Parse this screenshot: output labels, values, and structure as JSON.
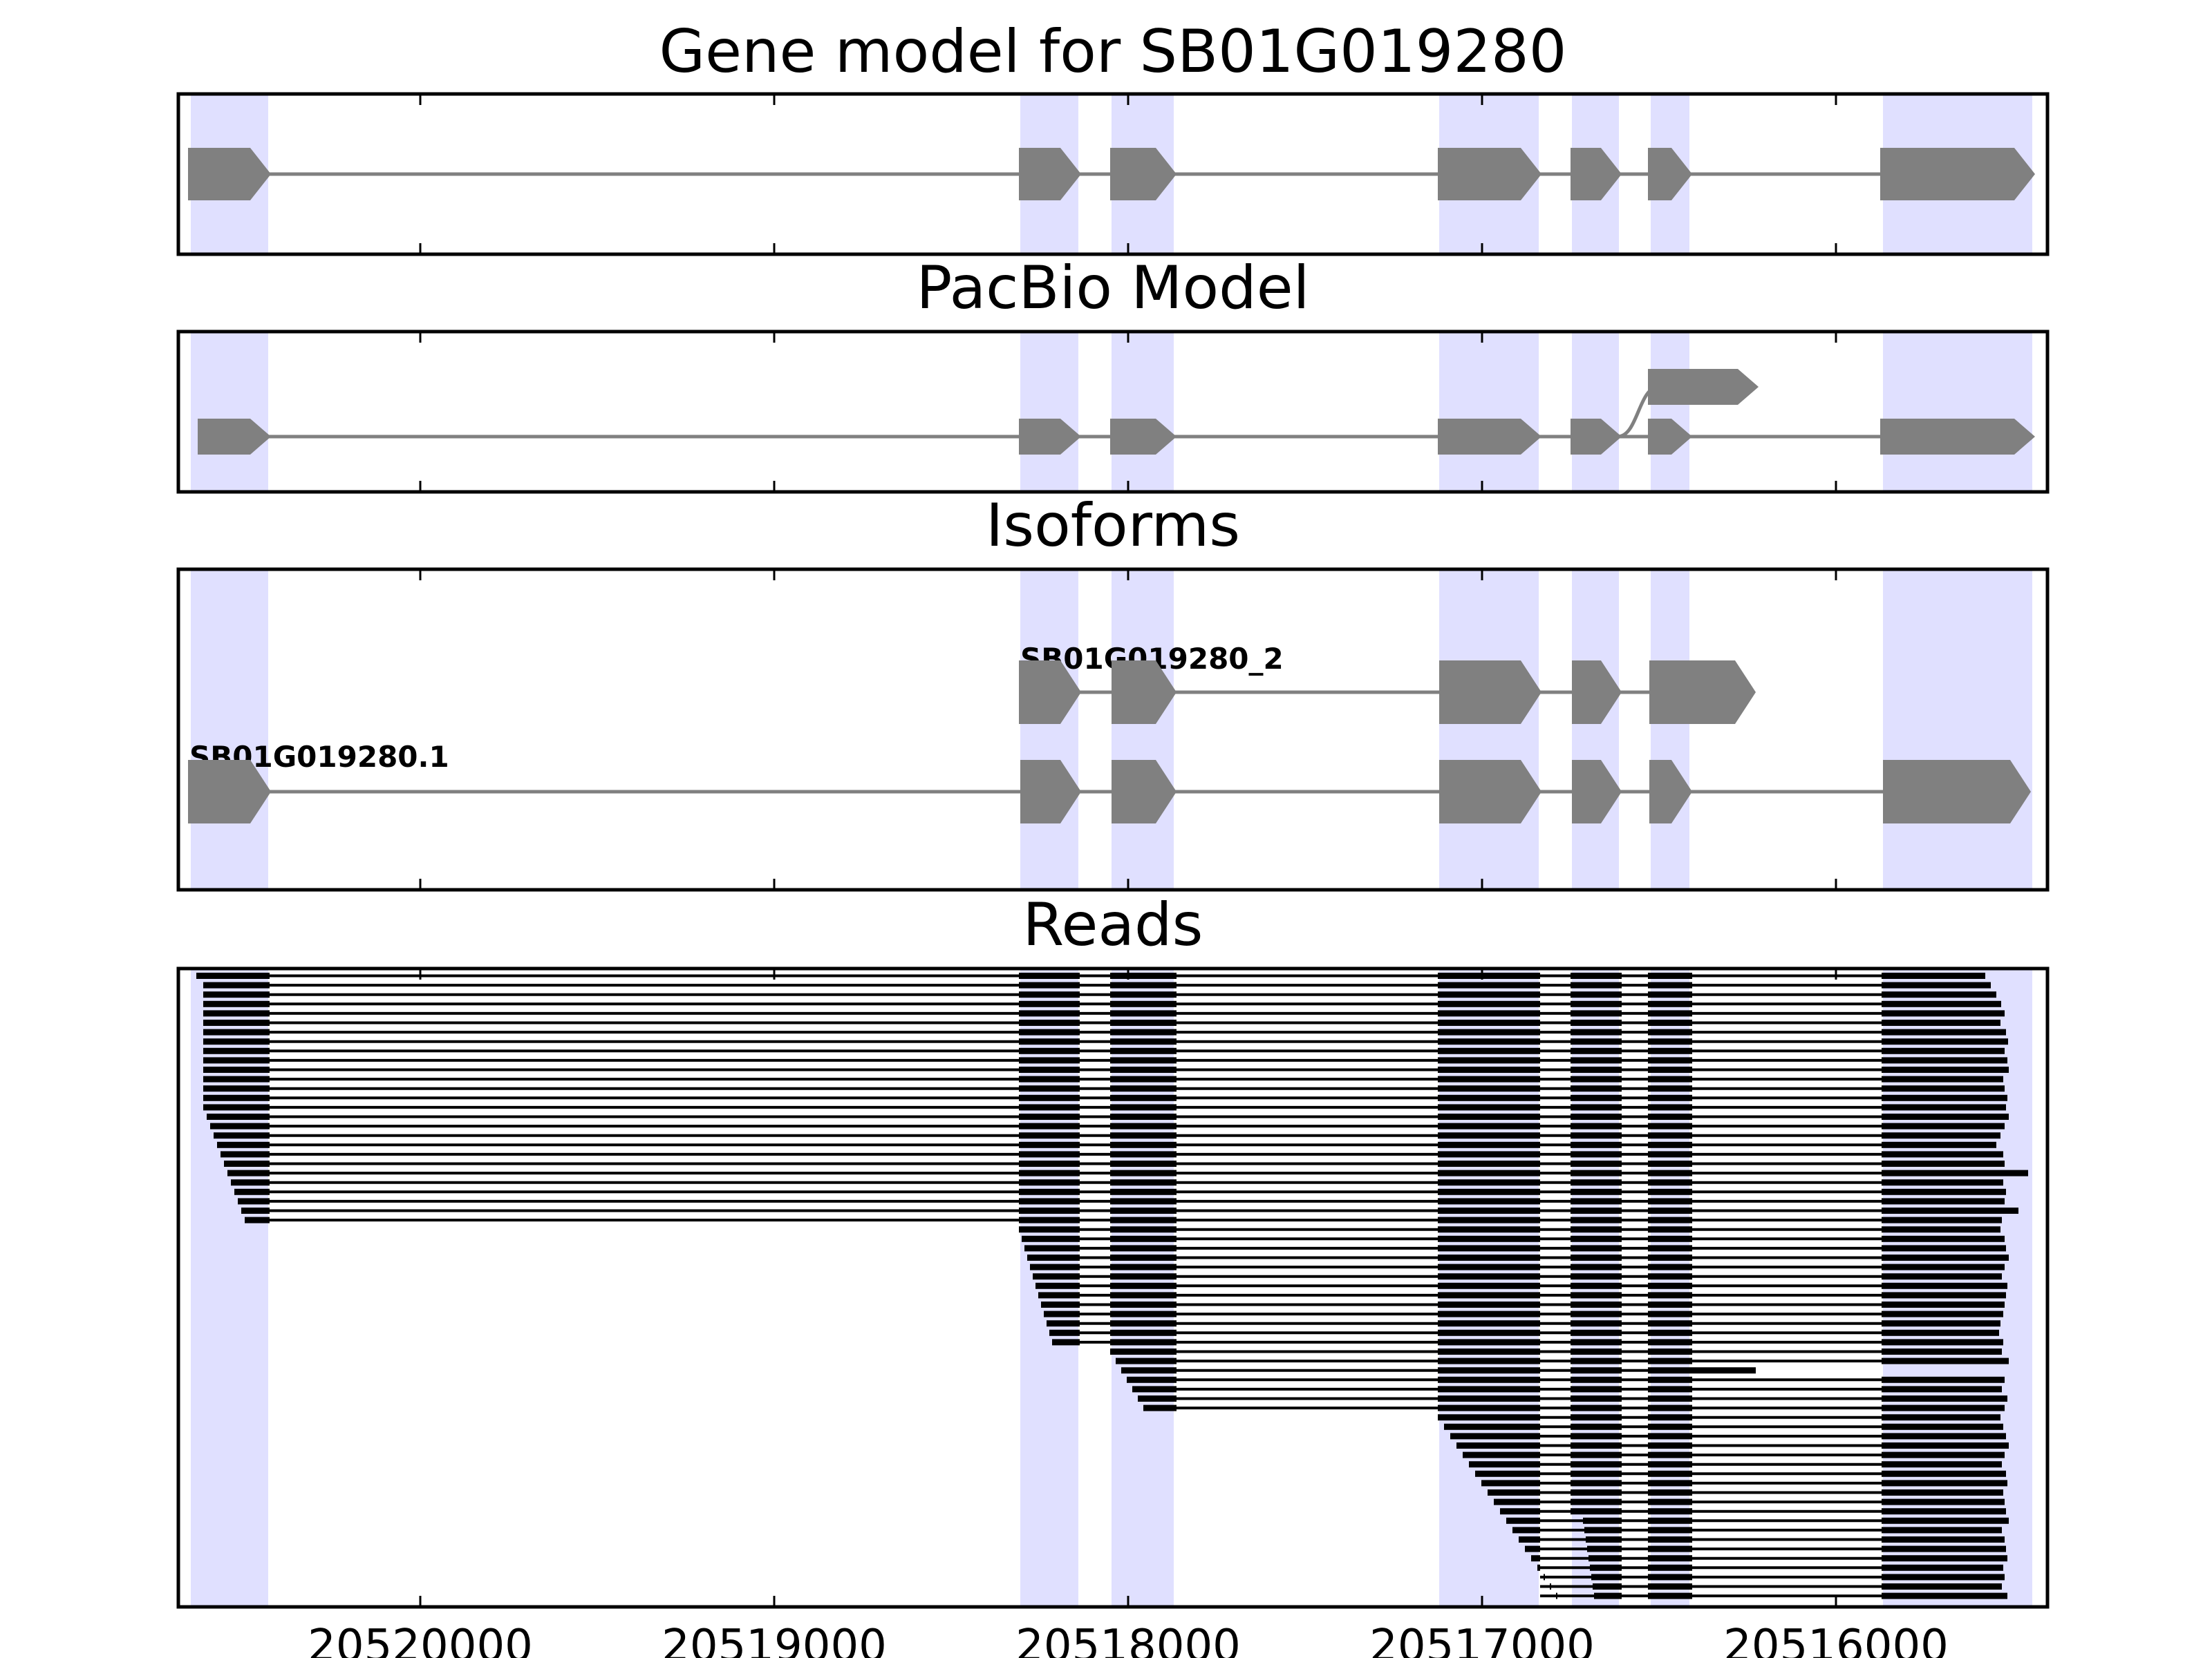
{
  "panels": [
    {
      "title": "Gene model for SB01G019280"
    },
    {
      "title": "PacBio Model"
    },
    {
      "title": "Isoforms"
    },
    {
      "title": "Reads"
    }
  ],
  "isoform_labels": [
    "SB01G019280_2",
    "SB01G019280.1"
  ],
  "x_ticks": [
    "20520000",
    "20519000",
    "20518000",
    "20517000",
    "20516000"
  ],
  "colors": {
    "exon_highlight": "#e0e0ff",
    "feature": "#808080",
    "read": "#000000"
  },
  "chart_data": {
    "type": "gene-structure",
    "x_axis": {
      "reversed": true,
      "range": [
        20520650,
        20515400
      ],
      "ticks": [
        20520000,
        20519000,
        20518000,
        20517000,
        20516000
      ]
    },
    "exon_regions": [
      [
        20520620,
        20520400
      ],
      [
        20518280,
        20518120
      ],
      [
        20518020,
        20517850
      ],
      [
        20517110,
        20516830
      ],
      [
        20516740,
        20516610
      ],
      [
        20516520,
        20516410
      ],
      [
        20515870,
        20515450
      ]
    ]
  }
}
